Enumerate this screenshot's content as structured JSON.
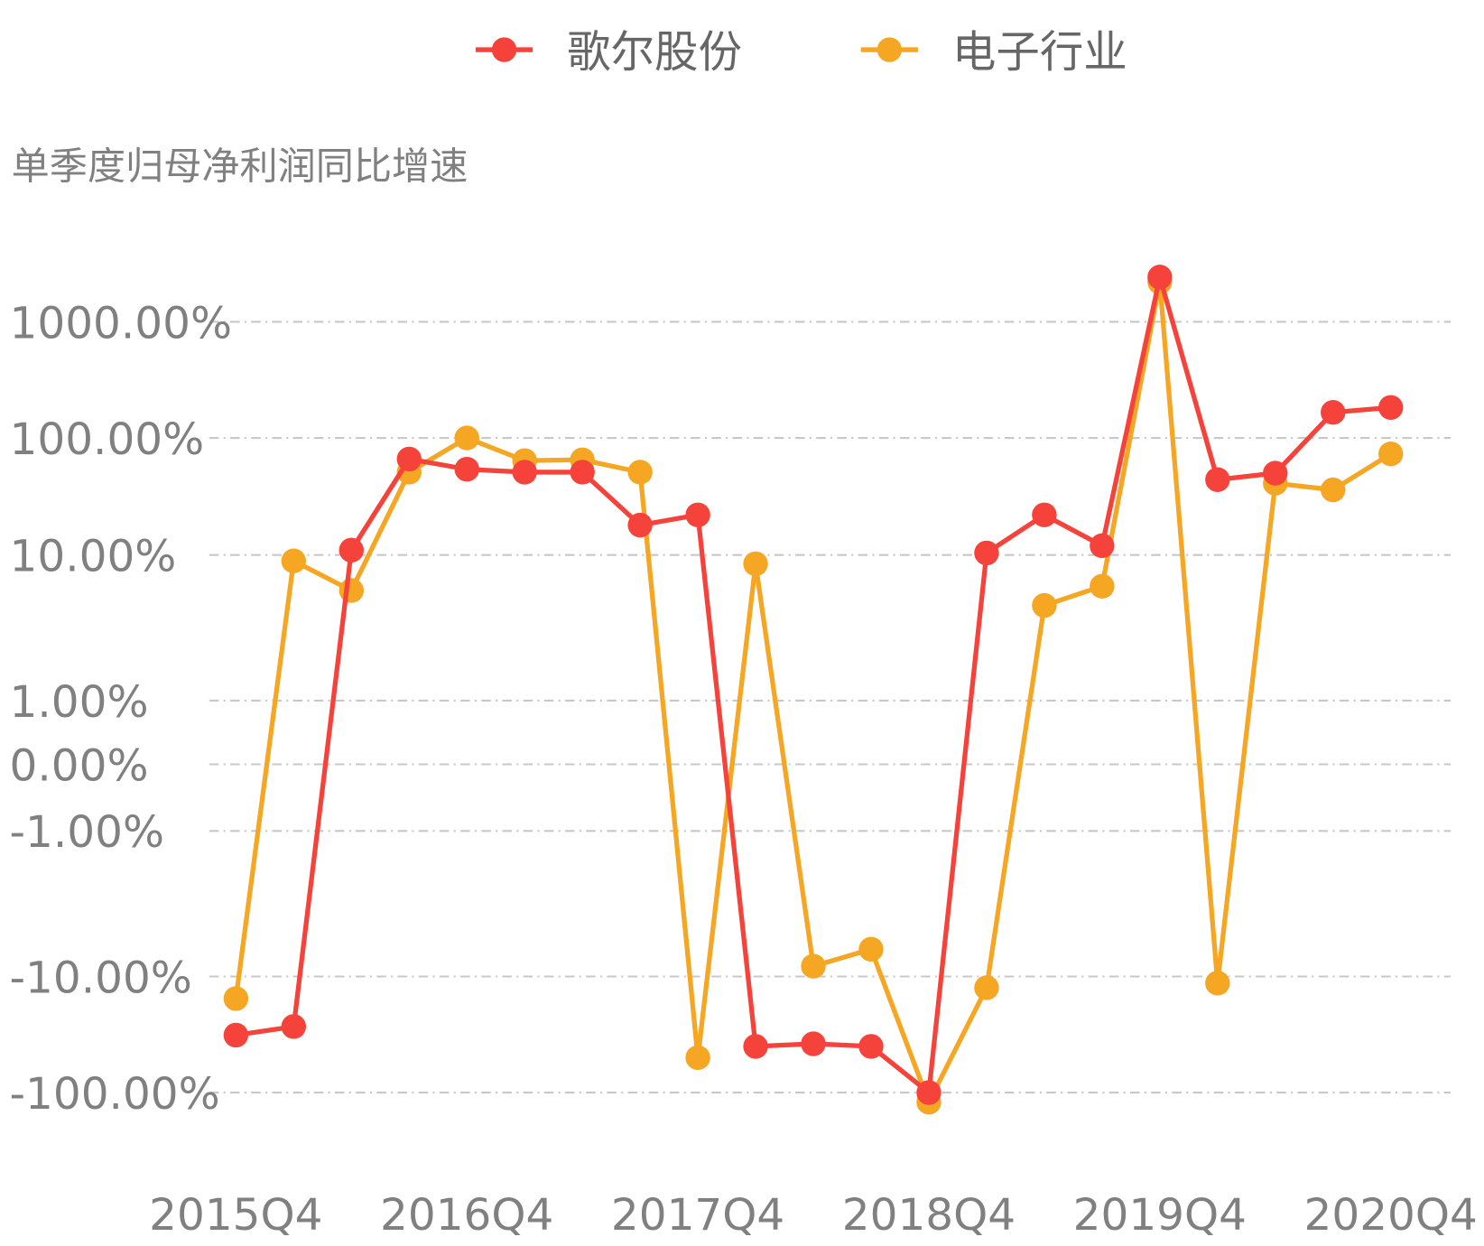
{
  "chart_data": {
    "type": "line",
    "title": "单季度归母净利润同比增速",
    "y_scale": "symlog",
    "grid": true,
    "legend_placement": "top",
    "y_ticks": [
      {
        "value": 1000,
        "label": "1000.00%"
      },
      {
        "value": 100,
        "label": "100.00%"
      },
      {
        "value": 10,
        "label": "10.00%"
      },
      {
        "value": 1,
        "label": "1.00%"
      },
      {
        "value": 0,
        "label": "0.00%"
      },
      {
        "value": -1,
        "label": "-1.00%"
      },
      {
        "value": -10,
        "label": "-10.00%"
      },
      {
        "value": -100,
        "label": "-100.00%"
      }
    ],
    "categories": [
      "2015Q4",
      "2016Q1",
      "2016Q2",
      "2016Q3",
      "2016Q4",
      "2017Q1",
      "2017Q2",
      "2017Q3",
      "2017Q4",
      "2018Q1",
      "2018Q2",
      "2018Q3",
      "2018Q4",
      "2019Q1",
      "2019Q2",
      "2019Q3",
      "2019Q4",
      "2020Q1",
      "2020Q2",
      "2020Q3",
      "2020Q4"
    ],
    "x_tick_labels": [
      "2015Q4",
      "2016Q4",
      "2017Q4",
      "2018Q4",
      "2019Q4",
      "2020Q4"
    ],
    "series": [
      {
        "name": "歌尔股份",
        "color": "#f5423a",
        "values": [
          -32,
          -27,
          11,
          66,
          54,
          51,
          51,
          18,
          22,
          -40,
          -38,
          -40,
          -100,
          10.4,
          22,
          12,
          2430,
          44,
          50,
          166,
          183
        ]
      },
      {
        "name": "电子行业",
        "color": "#f5a623",
        "values": [
          -15.5,
          9.1,
          5.7,
          51,
          100,
          64,
          65,
          51,
          -50,
          8.7,
          -8.5,
          -6.5,
          -121,
          -12.5,
          4.5,
          6.1,
          2200,
          -11.4,
          41,
          36,
          73
        ]
      }
    ]
  }
}
